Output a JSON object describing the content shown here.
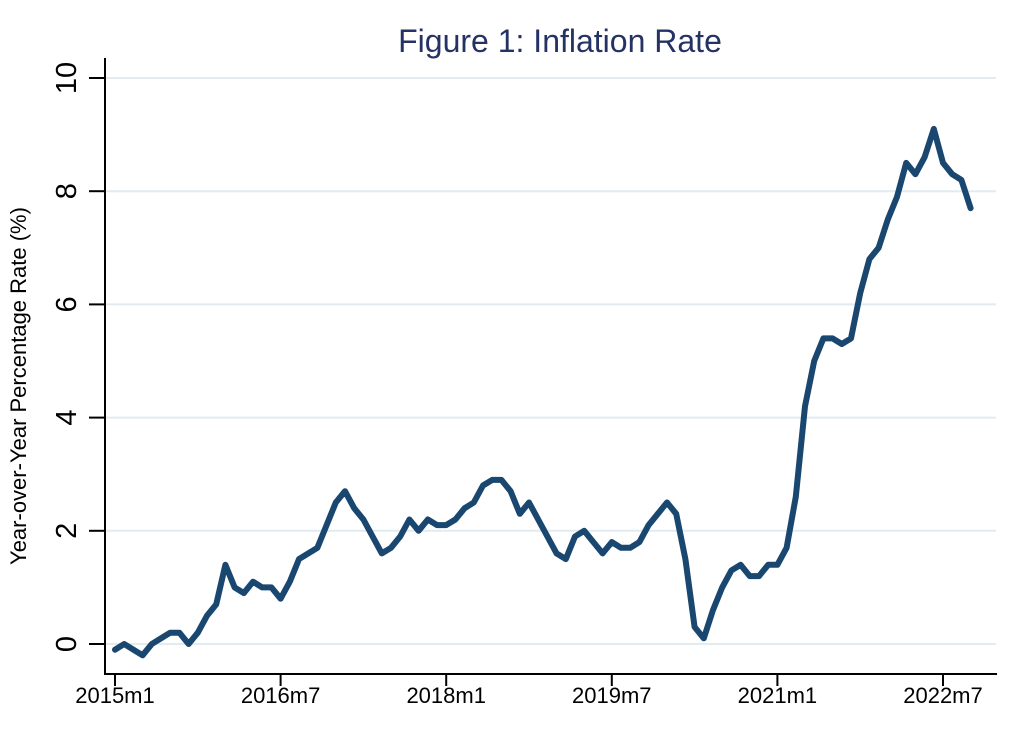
{
  "chart_data": {
    "type": "line",
    "title": "Figure 1: Inflation Rate",
    "xlabel": "",
    "ylabel": "Year-over-Year Percentage Rate (%)",
    "grid": true,
    "legend_position": "none",
    "ylim": [
      -0.5,
      10.4
    ],
    "y_ticks": [
      0,
      2,
      4,
      6,
      8,
      10
    ],
    "y_tick_labels": [
      "0",
      "2",
      "4",
      "6",
      "8",
      "10"
    ],
    "x_tick_labels": [
      "2015m1",
      "2016m7",
      "2018m1",
      "2019m7",
      "2021m1",
      "2022m7"
    ],
    "x": [
      "2015m1",
      "2015m2",
      "2015m3",
      "2015m4",
      "2015m5",
      "2015m6",
      "2015m7",
      "2015m8",
      "2015m9",
      "2015m10",
      "2015m11",
      "2015m12",
      "2016m1",
      "2016m2",
      "2016m3",
      "2016m4",
      "2016m5",
      "2016m6",
      "2016m7",
      "2016m8",
      "2016m9",
      "2016m10",
      "2016m11",
      "2016m12",
      "2017m1",
      "2017m2",
      "2017m3",
      "2017m4",
      "2017m5",
      "2017m6",
      "2017m7",
      "2017m8",
      "2017m9",
      "2017m10",
      "2017m11",
      "2017m12",
      "2018m1",
      "2018m2",
      "2018m3",
      "2018m4",
      "2018m5",
      "2018m6",
      "2018m7",
      "2018m8",
      "2018m9",
      "2018m10",
      "2018m11",
      "2018m12",
      "2019m1",
      "2019m2",
      "2019m3",
      "2019m4",
      "2019m5",
      "2019m6",
      "2019m7",
      "2019m8",
      "2019m9",
      "2019m10",
      "2019m11",
      "2019m12",
      "2020m1",
      "2020m2",
      "2020m3",
      "2020m4",
      "2020m5",
      "2020m6",
      "2020m7",
      "2020m8",
      "2020m9",
      "2020m10",
      "2020m11",
      "2020m12",
      "2021m1",
      "2021m2",
      "2021m3",
      "2021m4",
      "2021m5",
      "2021m6",
      "2021m7",
      "2021m8",
      "2021m9",
      "2021m10",
      "2021m11",
      "2021m12",
      "2022m1",
      "2022m2",
      "2022m3",
      "2022m4",
      "2022m5",
      "2022m6",
      "2022m7",
      "2022m8",
      "2022m9",
      "2022m10"
    ],
    "series": [
      {
        "name": "Inflation Rate",
        "values": [
          -0.1,
          0.0,
          -0.1,
          -0.2,
          0.0,
          0.1,
          0.2,
          0.2,
          0.0,
          0.2,
          0.5,
          0.7,
          1.4,
          1.0,
          0.9,
          1.1,
          1.0,
          1.0,
          0.8,
          1.1,
          1.5,
          1.6,
          1.7,
          2.1,
          2.5,
          2.7,
          2.4,
          2.2,
          1.9,
          1.6,
          1.7,
          1.9,
          2.2,
          2.0,
          2.2,
          2.1,
          2.1,
          2.2,
          2.4,
          2.5,
          2.8,
          2.9,
          2.9,
          2.7,
          2.3,
          2.5,
          2.2,
          1.9,
          1.6,
          1.5,
          1.9,
          2.0,
          1.8,
          1.6,
          1.8,
          1.7,
          1.7,
          1.8,
          2.1,
          2.3,
          2.5,
          2.3,
          1.5,
          0.3,
          0.1,
          0.6,
          1.0,
          1.3,
          1.4,
          1.2,
          1.2,
          1.4,
          1.4,
          1.7,
          2.6,
          4.2,
          5.0,
          5.4,
          5.4,
          5.3,
          5.4,
          6.2,
          6.8,
          7.0,
          7.5,
          7.9,
          8.5,
          8.3,
          8.6,
          9.1,
          8.5,
          8.3,
          8.2,
          7.7
        ]
      }
    ],
    "colors": {
      "line": "#1a476f",
      "title": "#253264",
      "grid": "#e0ecf2",
      "axis": "#000000",
      "tick_label": "#000000",
      "background": "#ffffff"
    }
  }
}
